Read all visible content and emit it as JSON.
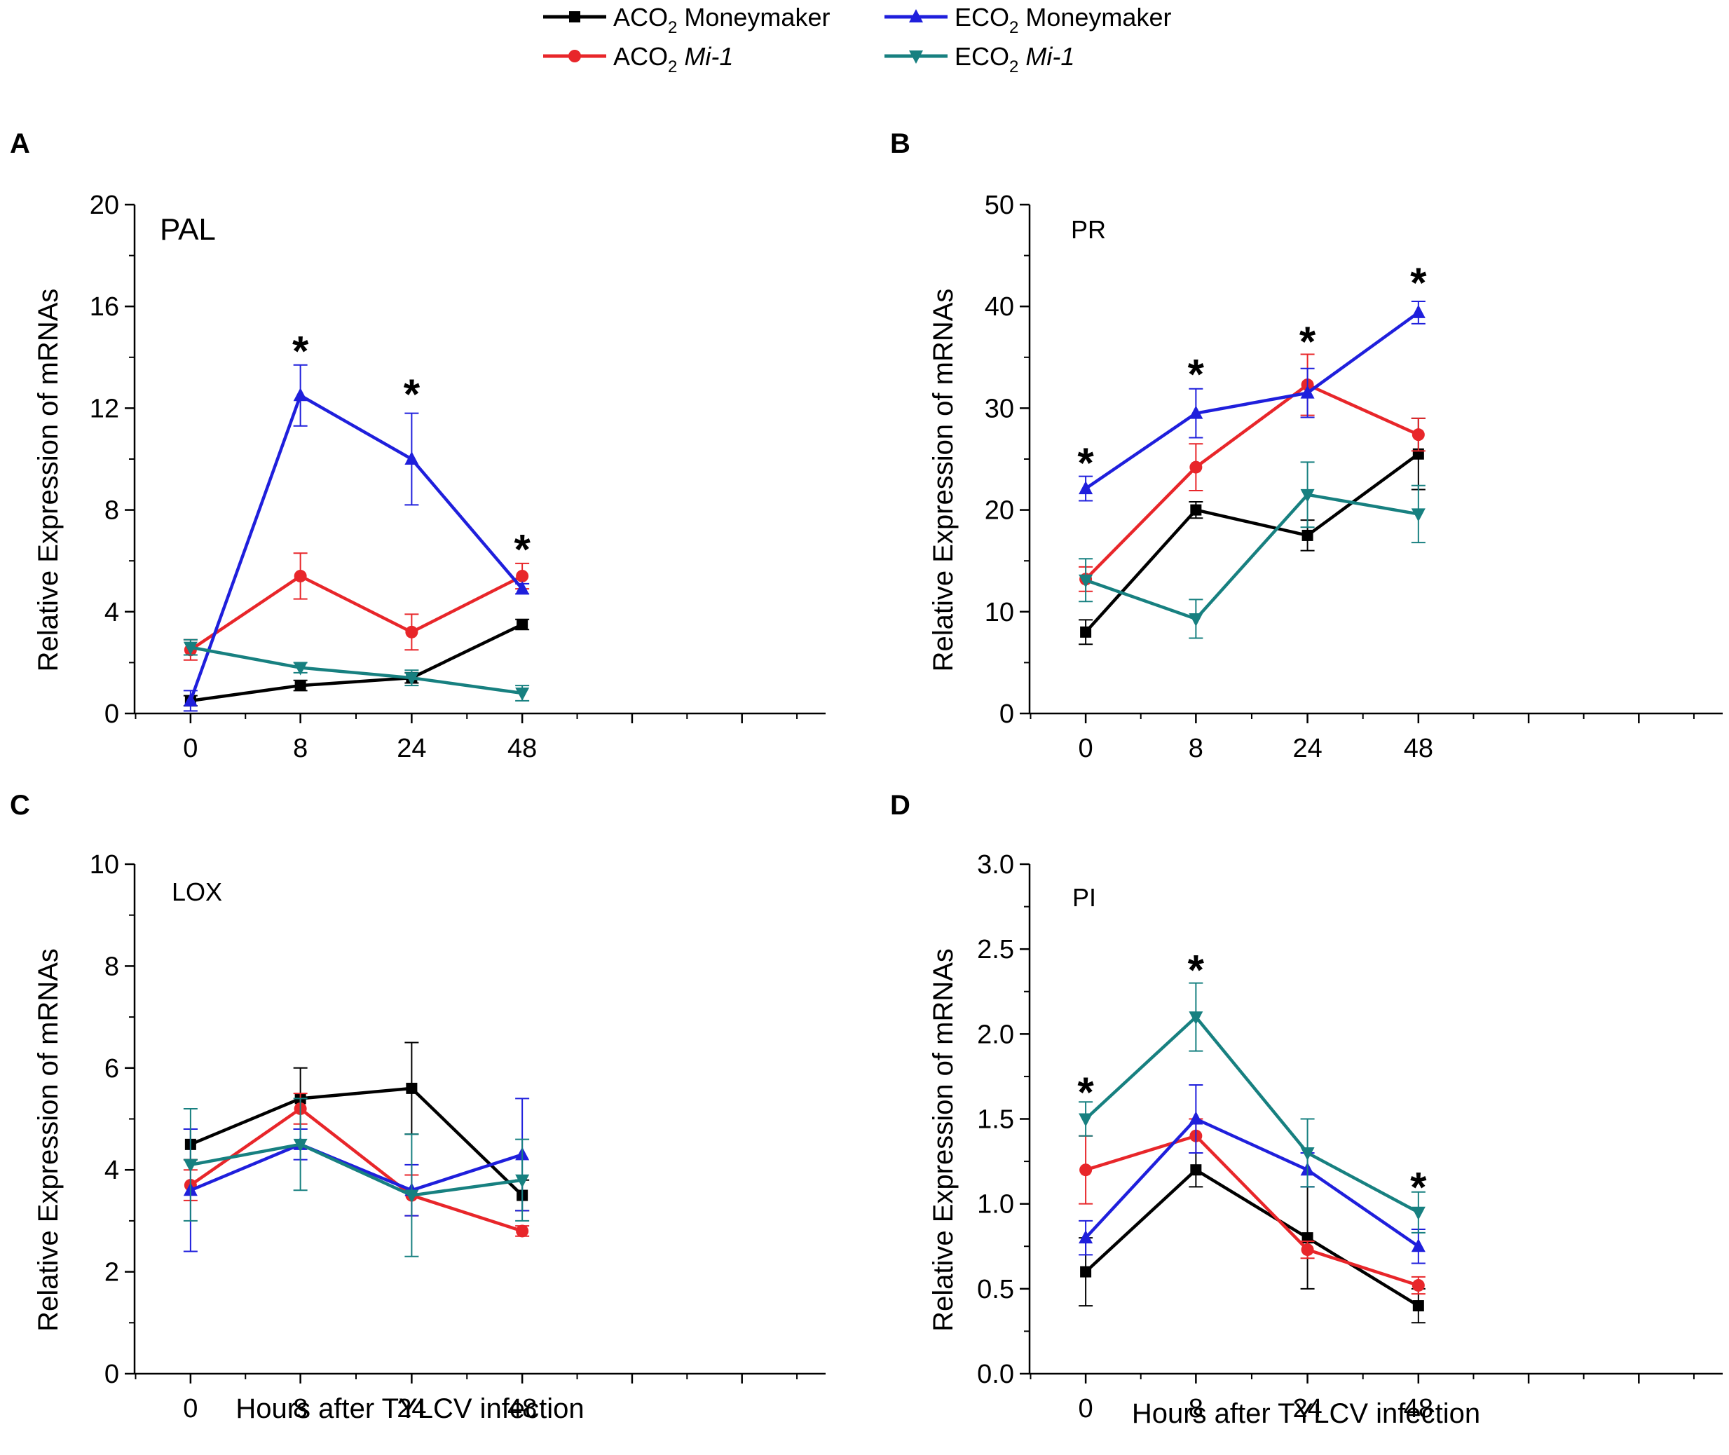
{
  "legend": [
    {
      "key": "aco2_mm",
      "prefix": "ACO",
      "sub": "2",
      "name": "Moneymaker",
      "italic": false,
      "color": "#000000",
      "marker": "square"
    },
    {
      "key": "eco2_mm",
      "prefix": "ECO",
      "sub": "2",
      "name": "Moneymaker",
      "italic": false,
      "color": "#1f1fdc",
      "marker": "triangle-up"
    },
    {
      "key": "aco2_mi",
      "prefix": "ACO",
      "sub": "2",
      "name": "Mi-1",
      "italic": true,
      "color": "#e8262a",
      "marker": "circle"
    },
    {
      "key": "eco2_mi",
      "prefix": "ECO",
      "sub": "2",
      "name": "Mi-1",
      "italic": true,
      "color": "#178080",
      "marker": "triangle-down"
    }
  ],
  "chart_data": [
    {
      "type": "line",
      "panel": "A",
      "gene": "PAL",
      "categories": [
        "0",
        "8",
        "24",
        "48"
      ],
      "xlabel": "",
      "ylabel": "Relative Expression of mRNAs",
      "ylim": [
        0,
        20
      ],
      "yticks": [
        0,
        4,
        8,
        12,
        16,
        20
      ],
      "ytick_labels": [
        "0",
        "4",
        "8",
        "12",
        "16",
        "20"
      ],
      "series": [
        {
          "key": "aco2_mm",
          "values": [
            0.5,
            1.1,
            1.4,
            3.5
          ],
          "errors": [
            0.2,
            0.2,
            0.2,
            0.2
          ]
        },
        {
          "key": "aco2_mi",
          "values": [
            2.5,
            5.4,
            3.2,
            5.4
          ],
          "errors": [
            0.4,
            0.9,
            0.7,
            0.5
          ]
        },
        {
          "key": "eco2_mm",
          "values": [
            0.5,
            12.5,
            10.0,
            4.9
          ],
          "errors": [
            0.4,
            1.2,
            1.8,
            0.2
          ]
        },
        {
          "key": "eco2_mi",
          "values": [
            2.6,
            1.8,
            1.4,
            0.8
          ],
          "errors": [
            0.3,
            0.2,
            0.3,
            0.3
          ]
        }
      ],
      "significance": [
        {
          "category": "8",
          "value": 14.4,
          "label": "*"
        },
        {
          "category": "24",
          "value": 12.7,
          "label": "*"
        },
        {
          "category": "48",
          "value": 6.6,
          "label": "*"
        }
      ]
    },
    {
      "type": "line",
      "panel": "B",
      "gene": "PR",
      "categories": [
        "0",
        "8",
        "24",
        "48"
      ],
      "xlabel": "",
      "ylabel": "Relative Expression of mRNAs",
      "ylim": [
        0,
        50
      ],
      "yticks": [
        0,
        10,
        20,
        30,
        40,
        50
      ],
      "ytick_labels": [
        "0",
        "10",
        "20",
        "30",
        "40",
        "50"
      ],
      "series": [
        {
          "key": "aco2_mm",
          "values": [
            8.0,
            20.0,
            17.5,
            25.5
          ],
          "errors": [
            1.2,
            0.8,
            1.5,
            3.5
          ]
        },
        {
          "key": "aco2_mi",
          "values": [
            13.2,
            24.2,
            32.3,
            27.4
          ],
          "errors": [
            1.2,
            2.3,
            3.0,
            1.6
          ]
        },
        {
          "key": "eco2_mm",
          "values": [
            22.1,
            29.5,
            31.5,
            39.4
          ],
          "errors": [
            1.2,
            2.4,
            2.4,
            1.1
          ]
        },
        {
          "key": "eco2_mi",
          "values": [
            13.1,
            9.3,
            21.5,
            19.6
          ],
          "errors": [
            2.1,
            1.9,
            3.2,
            2.8
          ]
        }
      ],
      "significance": [
        {
          "category": "0",
          "value": 25.0,
          "label": "*"
        },
        {
          "category": "8",
          "value": 33.7,
          "label": "*"
        },
        {
          "category": "24",
          "value": 36.9,
          "label": "*"
        },
        {
          "category": "48",
          "value": 42.7,
          "label": "*"
        }
      ]
    },
    {
      "type": "line",
      "panel": "C",
      "gene": "LOX",
      "categories": [
        "0",
        "8",
        "24",
        "48"
      ],
      "xlabel": "Hours after TYLCV infection",
      "ylabel": "Relative Expression of mRNAs",
      "ylim": [
        0,
        10
      ],
      "yticks": [
        0,
        2,
        4,
        6,
        8,
        10
      ],
      "ytick_labels": [
        "0",
        "2",
        "4",
        "6",
        "8",
        "10"
      ],
      "series": [
        {
          "key": "aco2_mm",
          "values": [
            4.5,
            5.4,
            5.6,
            3.5
          ],
          "errors": [
            0.3,
            0.6,
            0.9,
            0.3
          ]
        },
        {
          "key": "aco2_mi",
          "values": [
            3.7,
            5.2,
            3.5,
            2.8
          ],
          "errors": [
            0.3,
            0.3,
            0.4,
            0.1
          ]
        },
        {
          "key": "eco2_mm",
          "values": [
            3.6,
            4.5,
            3.6,
            4.3
          ],
          "errors": [
            1.2,
            0.3,
            0.5,
            1.1
          ]
        },
        {
          "key": "eco2_mi",
          "values": [
            4.1,
            4.5,
            3.5,
            3.8
          ],
          "errors": [
            1.1,
            0.9,
            1.2,
            0.8
          ]
        }
      ],
      "significance": []
    },
    {
      "type": "line",
      "panel": "D",
      "gene": "PI",
      "categories": [
        "0",
        "8",
        "24",
        "48"
      ],
      "xlabel": "Hours after TYLCV infection",
      "ylabel": "Relative Expression of mRNAs",
      "ylim": [
        0,
        3.0
      ],
      "yticks": [
        0,
        0.5,
        1.0,
        1.5,
        2.0,
        2.5,
        3.0
      ],
      "ytick_labels": [
        "0.0",
        "0.5",
        "1.0",
        "1.5",
        "2.0",
        "2.5",
        "3.0"
      ],
      "series": [
        {
          "key": "aco2_mm",
          "values": [
            0.6,
            1.2,
            0.8,
            0.4
          ],
          "errors": [
            0.2,
            0.1,
            0.3,
            0.1
          ]
        },
        {
          "key": "aco2_mi",
          "values": [
            1.2,
            1.4,
            0.73,
            0.52
          ],
          "errors": [
            0.2,
            0.1,
            0.05,
            0.05
          ]
        },
        {
          "key": "eco2_mm",
          "values": [
            0.8,
            1.5,
            1.2,
            0.75
          ],
          "errors": [
            0.1,
            0.2,
            0.1,
            0.1
          ]
        },
        {
          "key": "eco2_mi",
          "values": [
            1.5,
            2.1,
            1.3,
            0.95
          ],
          "errors": [
            0.1,
            0.2,
            0.2,
            0.12
          ]
        }
      ],
      "significance": [
        {
          "category": "0",
          "value": 1.68,
          "label": "*"
        },
        {
          "category": "8",
          "value": 2.4,
          "label": "*"
        },
        {
          "category": "48",
          "value": 1.12,
          "label": "*"
        }
      ]
    }
  ]
}
